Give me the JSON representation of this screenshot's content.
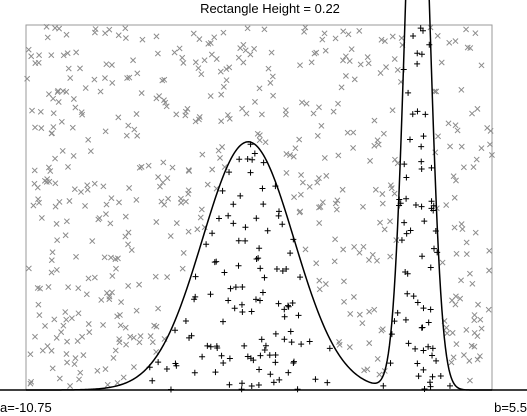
{
  "chart_data": {
    "type": "scatter",
    "title": "Rectangle Height = 0.22",
    "xlabel": "",
    "ylabel": "",
    "xlim": [
      -10.75,
      5.5
    ],
    "ylim": [
      0,
      0.22
    ],
    "grid": false,
    "legend": "none",
    "axis_labels": {
      "left": "a=-10.75",
      "right": "b=5.5"
    },
    "colors": {
      "accepted": "#000000",
      "rejected": "#8c8c8c",
      "curve": "#000000",
      "frame": "#9a9a9a"
    },
    "marker_symbols": {
      "accepted": "+",
      "rejected": "x"
    },
    "curve_components": [
      {
        "weight": 0.6,
        "mean": -3.0,
        "sd": 1.6
      },
      {
        "weight": 0.4,
        "mean": 2.9,
        "sd": 0.42
      }
    ],
    "sample": {
      "seed": 20240611,
      "count": 700
    }
  }
}
